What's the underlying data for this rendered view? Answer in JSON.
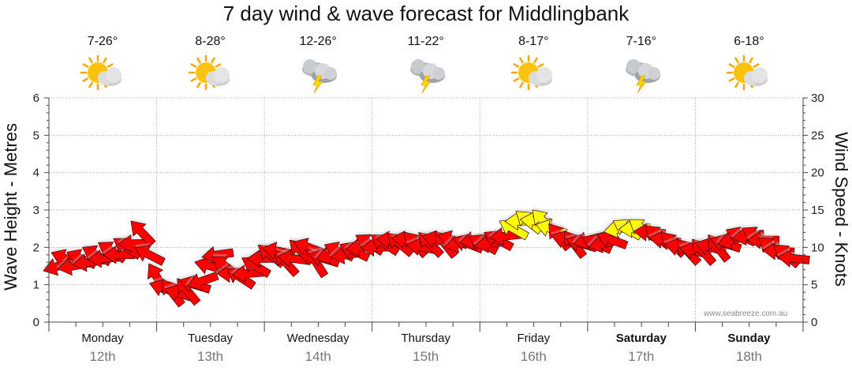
{
  "chart_data": {
    "type": "line",
    "title": "7 day wind & wave forecast for Middlingbank",
    "ylabel_left": "Wave Height - Metres",
    "ylabel_right": "Wind Speed - Knots",
    "ylim_left": [
      0,
      6
    ],
    "ylim_right": [
      0,
      30
    ],
    "yticks_left": [
      "0",
      "1",
      "2",
      "3",
      "4",
      "5",
      "6"
    ],
    "yticks_right": [
      "0",
      "5",
      "10",
      "15",
      "20",
      "25",
      "30"
    ],
    "grid": true,
    "days": [
      {
        "name": "Monday",
        "date": "12th",
        "temp": "7-26°",
        "icon": "sun-cloud-icon",
        "bold": false
      },
      {
        "name": "Tuesday",
        "date": "13th",
        "temp": "8-28°",
        "icon": "sun-cloud-icon",
        "bold": false
      },
      {
        "name": "Wednesday",
        "date": "14th",
        "temp": "12-26°",
        "icon": "storm-cloud-icon",
        "bold": false
      },
      {
        "name": "Thursday",
        "date": "15th",
        "temp": "11-22°",
        "icon": "storm-cloud-icon",
        "bold": false
      },
      {
        "name": "Friday",
        "date": "16th",
        "temp": "8-17°",
        "icon": "sun-cloud-icon",
        "bold": false
      },
      {
        "name": "Saturday",
        "date": "17th",
        "temp": "7-16°",
        "icon": "storm-cloud-icon",
        "bold": true
      },
      {
        "name": "Sunday",
        "date": "18th",
        "temp": "6-18°",
        "icon": "sun-cloud-icon",
        "bold": true
      }
    ],
    "series": [
      {
        "values_knots": [
          7.5,
          8.5,
          7.5,
          8.5,
          8,
          9,
          8.5,
          9.5,
          9,
          10,
          10.5,
          12,
          9,
          6,
          4.5,
          4,
          3.8,
          4.2,
          5,
          5.5,
          7.5,
          9,
          7.5,
          6.5,
          6,
          6.5,
          7.5,
          8.5,
          9,
          9.5,
          8,
          8.5,
          9.5,
          10,
          8,
          8.5,
          9,
          9.5,
          9,
          9.5,
          10,
          10.5,
          10,
          10.5,
          11,
          10.5,
          11,
          10.5,
          10,
          10.5,
          11,
          10.5,
          11,
          10.5,
          10.5,
          11,
          10.5,
          10.5,
          11,
          11.5,
          12.5,
          13.5,
          13.5,
          13.5,
          13.5,
          12.5,
          11.5,
          11,
          10.5,
          10.5,
          11,
          10.5,
          10.5,
          11,
          12.5,
          12.5,
          12.5,
          12.5,
          12,
          11.5,
          11,
          10.5,
          10,
          9.5,
          9.5,
          9.5,
          10,
          10,
          10.5,
          11,
          11.5,
          11.5,
          11.5,
          11,
          10,
          9.5,
          9,
          8.5
        ],
        "colors": [
          "#ff0000",
          "#ffff00"
        ],
        "yellow_threshold_knots": 12.4
      }
    ]
  },
  "watermark": "www.seabreeze.com.au"
}
